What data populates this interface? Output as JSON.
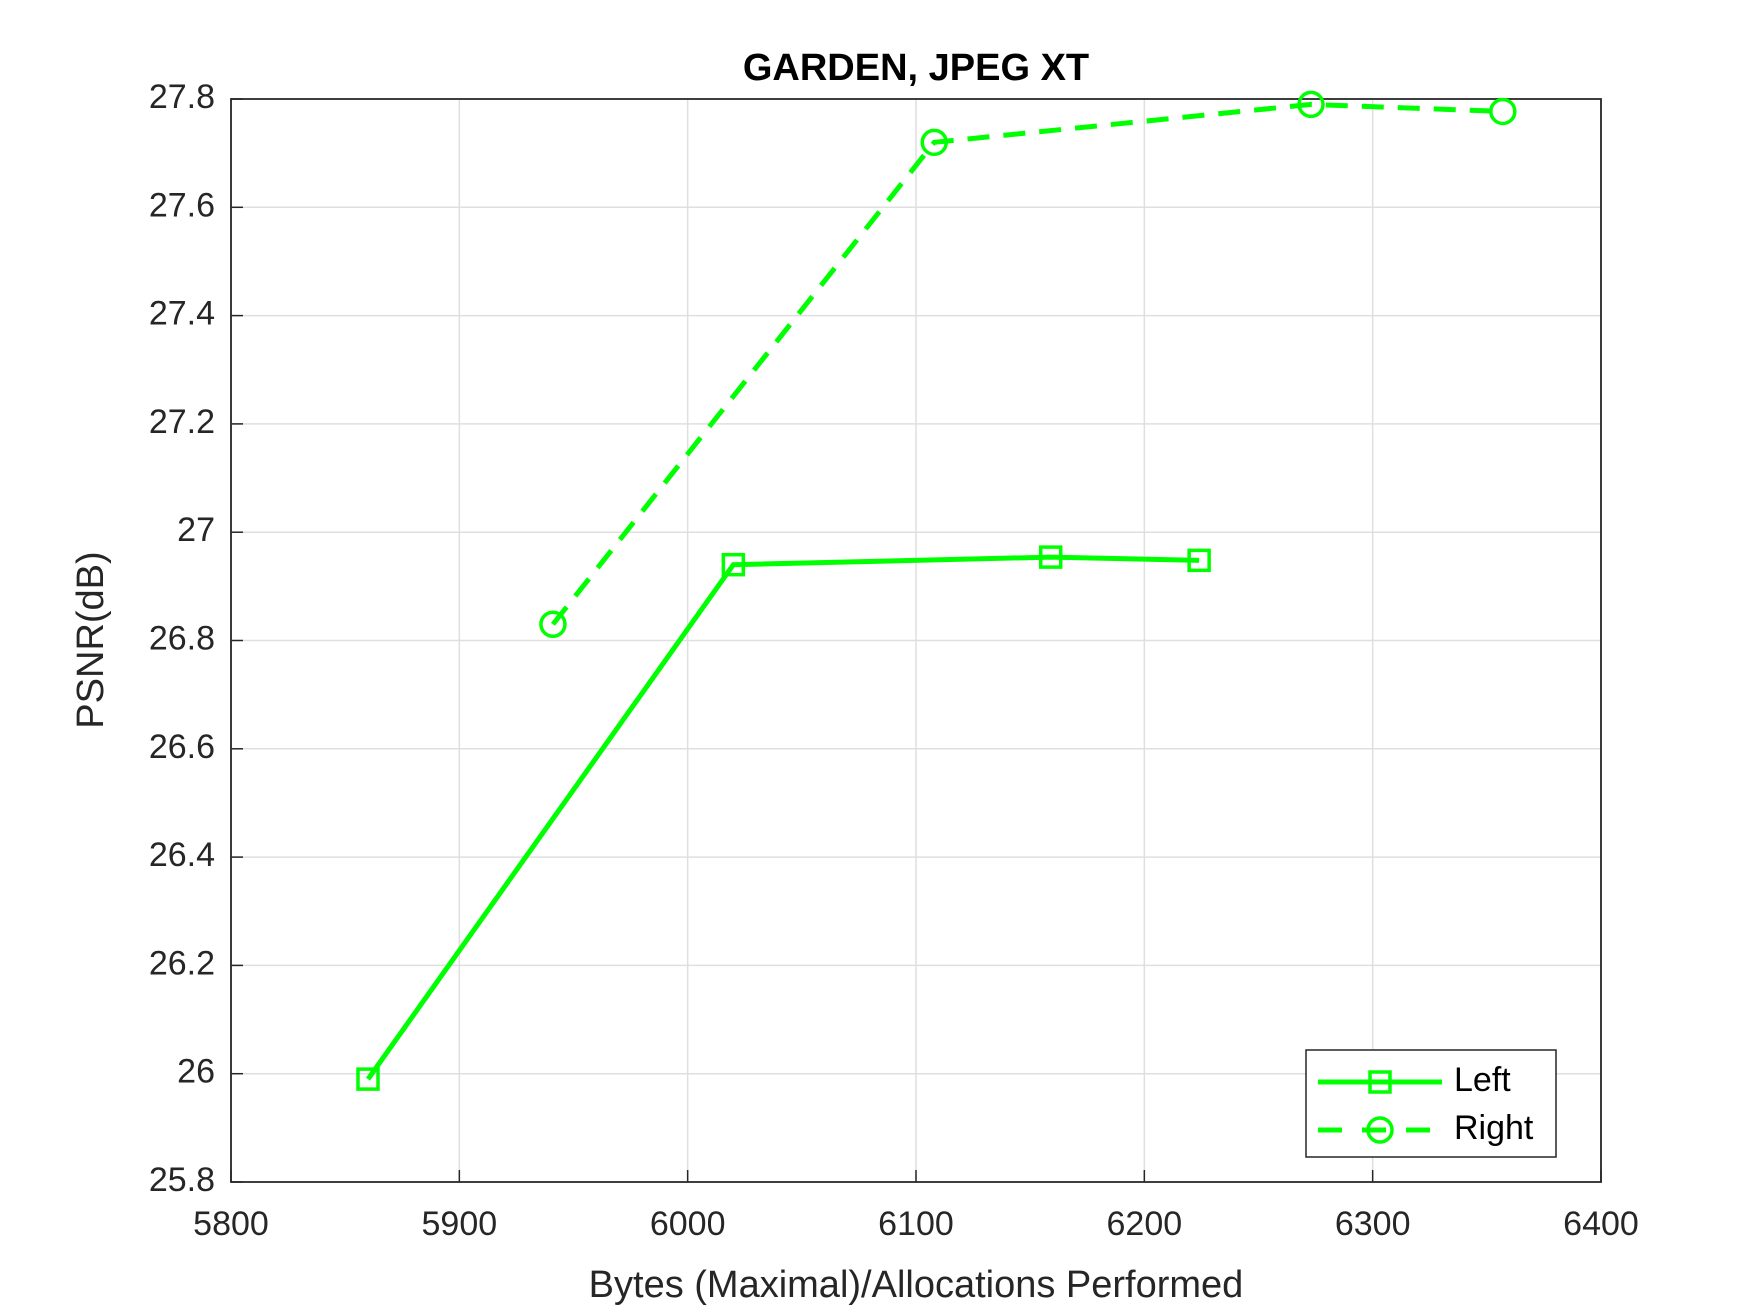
{
  "chart_data": {
    "type": "line",
    "title": "GARDEN, JPEG XT",
    "xlabel": "Bytes (Maximal)/Allocations Performed",
    "ylabel": "PSNR(dB)",
    "xlim": [
      5800,
      6400
    ],
    "xticks": [
      5800,
      5900,
      6000,
      6100,
      6200,
      6300,
      6400
    ],
    "ylim": [
      25.8,
      27.8
    ],
    "yticks": [
      25.8,
      26,
      26.2,
      26.4,
      26.6,
      26.8,
      27,
      27.2,
      27.4,
      27.6,
      27.8
    ],
    "grid": true,
    "legend_position": "lower right",
    "series": [
      {
        "name": "Left",
        "color": "#00ff00",
        "marker": "square",
        "linestyle": "solid",
        "x": [
          5860,
          6020,
          6159,
          6224
        ],
        "values": [
          25.99,
          26.94,
          26.954,
          26.948
        ]
      },
      {
        "name": "Right",
        "color": "#00ff00",
        "marker": "circle",
        "linestyle": "dashed",
        "x": [
          5941,
          6108,
          6273,
          6357
        ],
        "values": [
          26.83,
          27.72,
          27.79,
          27.777
        ]
      }
    ]
  }
}
